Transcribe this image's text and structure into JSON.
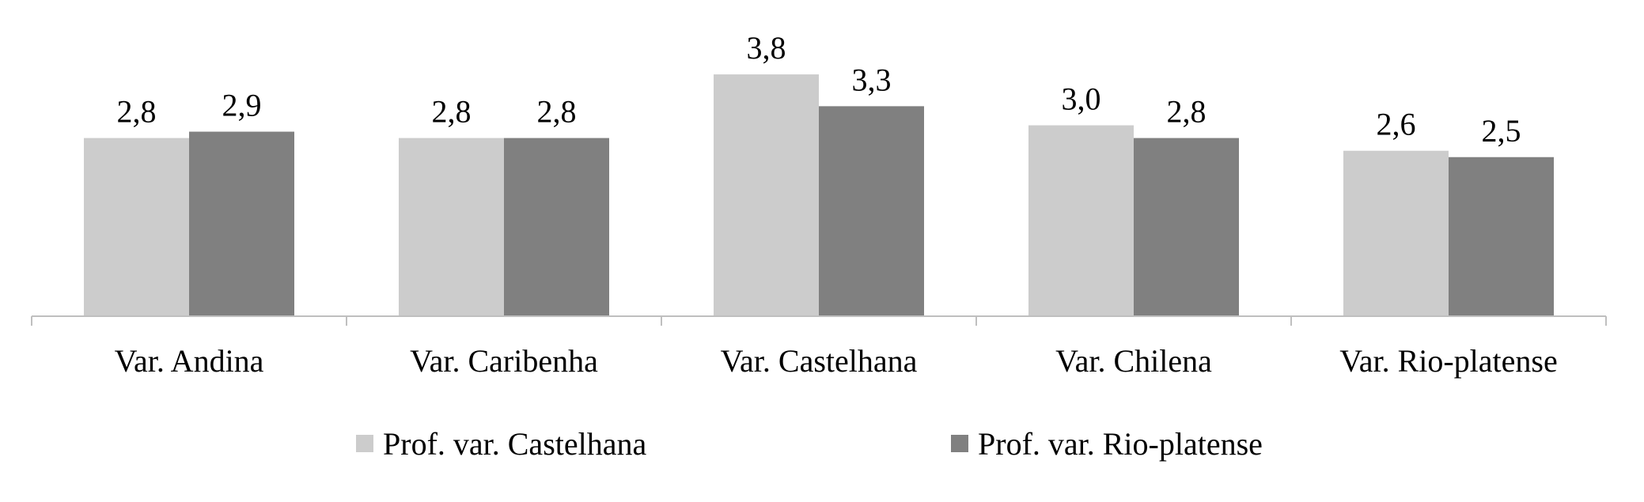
{
  "chart_data": {
    "type": "bar",
    "categories": [
      "Var. Andina",
      "Var. Caribenha",
      "Var. Castelhana",
      "Var. Chilena",
      "Var. Rio-platense"
    ],
    "series": [
      {
        "name": "Prof. var. Castelhana",
        "values": [
          2.8,
          2.8,
          3.8,
          3.0,
          2.6
        ],
        "labels": [
          "2,8",
          "2,8",
          "3,8",
          "3,0",
          "2,6"
        ],
        "color": "#cccccc"
      },
      {
        "name": "Prof. var. Rio-platense",
        "values": [
          2.9,
          2.8,
          3.3,
          2.8,
          2.5
        ],
        "labels": [
          "2,9",
          "2,8",
          "3,3",
          "2,8",
          "2,5"
        ],
        "color": "#808080"
      }
    ],
    "ylim": [
      0,
      4.0
    ],
    "grid": false,
    "legend_position": "bottom",
    "axis_color": "#bfbfbf"
  }
}
